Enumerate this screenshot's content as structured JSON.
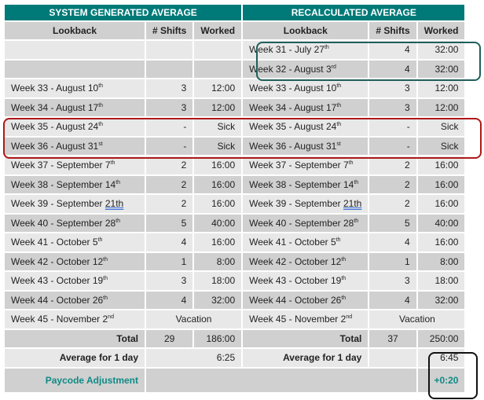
{
  "headers": {
    "left": "SYSTEM GENERATED AVERAGE",
    "right": "RECALCULATED AVERAGE"
  },
  "columns": {
    "lookback": "Lookback",
    "shifts": "# Shifts",
    "worked": "Worked"
  },
  "rows": [
    {
      "left": null,
      "right": {
        "week": "Week 31 - July 27",
        "sup": "th",
        "shifts": "4",
        "worked": "32:00"
      }
    },
    {
      "left": null,
      "right": {
        "week": "Week 32 - August 3",
        "sup": "rd",
        "shifts": "4",
        "worked": "32:00"
      }
    },
    {
      "left": {
        "week": "Week 33 - August 10",
        "sup": "th",
        "shifts": "3",
        "worked": "12:00"
      },
      "right": {
        "week": "Week 33 - August 10",
        "sup": "th",
        "shifts": "3",
        "worked": "12:00"
      }
    },
    {
      "left": {
        "week": "Week 34 - August 17",
        "sup": "th",
        "shifts": "3",
        "worked": "12:00"
      },
      "right": {
        "week": "Week 34 - August 17",
        "sup": "th",
        "shifts": "3",
        "worked": "12:00"
      }
    },
    {
      "left": {
        "week": "Week 35 - August 24",
        "sup": "th",
        "shifts": "-",
        "worked": "Sick"
      },
      "right": {
        "week": "Week 35 - August 24",
        "sup": "th",
        "shifts": "-",
        "worked": "Sick"
      }
    },
    {
      "left": {
        "week": "Week 36  - August 31",
        "sup": "st",
        "shifts": "-",
        "worked": "Sick"
      },
      "right": {
        "week": "Week 36  - August 31",
        "sup": "st",
        "shifts": "-",
        "worked": "Sick"
      }
    },
    {
      "left": {
        "week": "Week 37 - September 7",
        "sup": "th",
        "shifts": "2",
        "worked": "16:00"
      },
      "right": {
        "week": "Week 37 - September 7",
        "sup": "th",
        "shifts": "2",
        "worked": "16:00"
      }
    },
    {
      "left": {
        "week": "Week 38 - September 14",
        "sup": "th",
        "shifts": "2",
        "worked": "16:00"
      },
      "right": {
        "week": "Week 38 - September 14",
        "sup": "th",
        "shifts": "2",
        "worked": "16:00"
      }
    },
    {
      "left": {
        "week": "Week 39 - September ",
        "spell": "21th",
        "shifts": "2",
        "worked": "16:00"
      },
      "right": {
        "week": "Week 39 - September ",
        "spell": "21th",
        "shifts": "2",
        "worked": "16:00"
      }
    },
    {
      "left": {
        "week": "Week 40 - September 28",
        "sup": "th",
        "shifts": "5",
        "worked": "40:00"
      },
      "right": {
        "week": "Week 40 - September 28",
        "sup": "th",
        "shifts": "5",
        "worked": "40:00"
      }
    },
    {
      "left": {
        "week": "Week 41 - October 5",
        "sup": "th",
        "shifts": "4",
        "worked": "16:00"
      },
      "right": {
        "week": "Week 41 - October 5",
        "sup": "th",
        "shifts": "4",
        "worked": "16:00"
      }
    },
    {
      "left": {
        "week": "Week 42 - October 12",
        "sup": "th",
        "shifts": "1",
        "worked": "8:00"
      },
      "right": {
        "week": "Week 42 - October 12",
        "sup": "th",
        "shifts": "1",
        "worked": "8:00"
      }
    },
    {
      "left": {
        "week": "Week 43 - October 19",
        "sup": "th",
        "shifts": "3",
        "worked": "18:00"
      },
      "right": {
        "week": "Week 43 - October 19",
        "sup": "th",
        "shifts": "3",
        "worked": "18:00"
      }
    },
    {
      "left": {
        "week": "Week 44 - October 26",
        "sup": "th",
        "shifts": "4",
        "worked": "32:00"
      },
      "right": {
        "week": "Week 44 - October 26",
        "sup": "th",
        "shifts": "4",
        "worked": "32:00"
      }
    },
    {
      "left": {
        "week": "Week 45 - November 2",
        "sup": "nd",
        "merged": "Vacation"
      },
      "right": {
        "week": "Week 45 - November 2",
        "sup": "nd",
        "merged": "Vacation"
      }
    }
  ],
  "total": {
    "label": "Total",
    "left_shifts": "29",
    "left_worked": "186:00",
    "right_shifts": "37",
    "right_worked": "250:00"
  },
  "average": {
    "label": "Average for 1 day",
    "left": "6:25",
    "right": "6:45"
  },
  "paycode": {
    "label": "Paycode Adjustment",
    "value": "+0:20"
  },
  "colors": {
    "header": "#007a78",
    "green_box": "#1f5f5a",
    "red_box": "#b01818",
    "black_box": "#111111"
  }
}
